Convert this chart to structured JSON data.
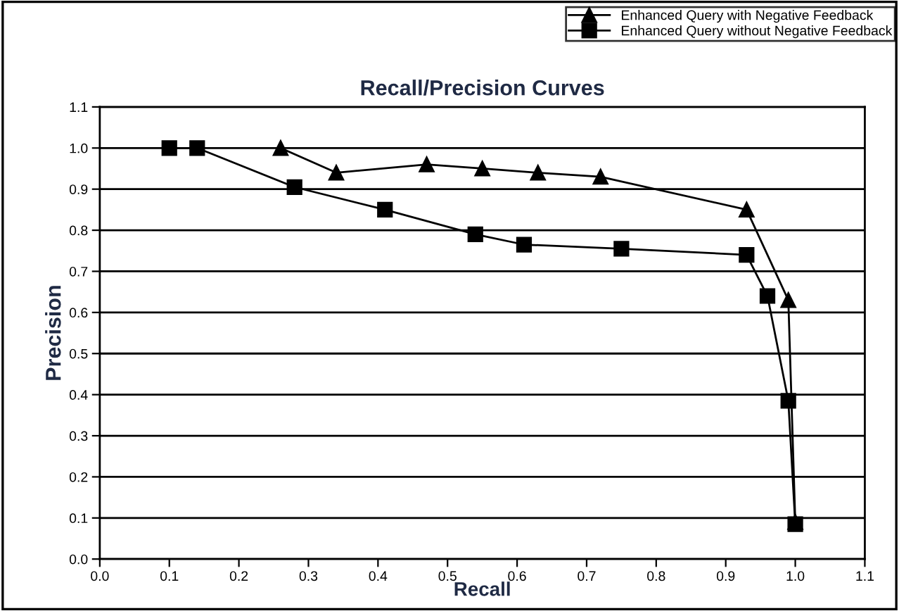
{
  "chart_data": {
    "type": "line",
    "title": "Recall/Precision Curves",
    "xlabel": "Recall",
    "ylabel": "Precision",
    "series": [
      {
        "name": "Enhanced Query with Negative Feedback",
        "color": "#000000",
        "marker": "triangle",
        "x": [
          0.26,
          0.34,
          0.47,
          0.55,
          0.63,
          0.72,
          0.93,
          0.99,
          1.0
        ],
        "values": [
          1.0,
          0.94,
          0.96,
          0.95,
          0.94,
          0.93,
          0.85,
          0.63,
          0.09
        ]
      },
      {
        "name": "Enhanced Query without Negative Feedback",
        "color": "#000000",
        "marker": "square",
        "x": [
          0.1,
          0.14,
          0.28,
          0.41,
          0.54,
          0.61,
          0.75,
          0.93,
          0.96,
          0.99,
          1.0
        ],
        "values": [
          1.0,
          1.0,
          0.905,
          0.85,
          0.79,
          0.765,
          0.755,
          0.74,
          0.64,
          0.385,
          0.085
        ]
      }
    ],
    "xlim": [
      0.0,
      1.1
    ],
    "ylim": [
      0.0,
      1.1
    ],
    "xticks": [
      {
        "value": 0.0,
        "label": "0.0"
      },
      0.1,
      0.2,
      0.3,
      0.4,
      0.5,
      0.6,
      0.7,
      0.8,
      0.9,
      {
        "value": 1.0,
        "label": "1.0"
      },
      1.1
    ],
    "yticks": [
      {
        "value": 0.0,
        "label": "0.0"
      },
      0.1,
      0.2,
      0.3,
      0.4,
      0.5,
      0.6,
      0.7,
      0.8,
      0.9,
      {
        "value": 1.0,
        "label": "1.0"
      },
      1.1
    ],
    "grid": "y",
    "legend": "top right",
    "line_style": "solid"
  }
}
